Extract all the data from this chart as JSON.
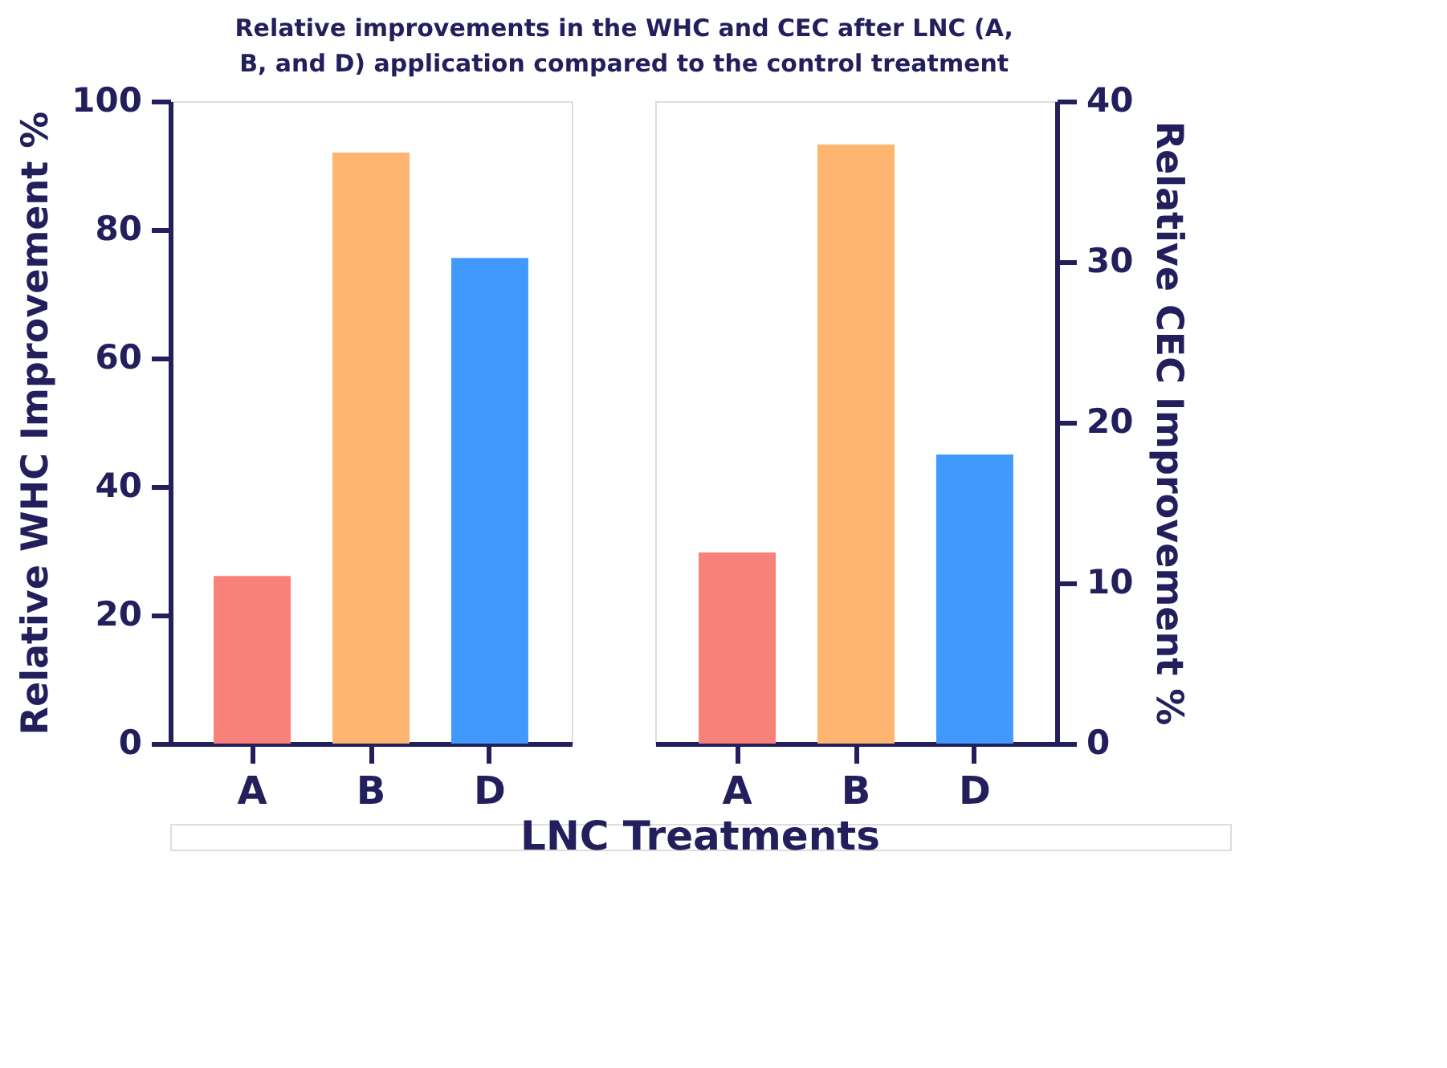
{
  "chart_data": [
    {
      "type": "bar",
      "title": "Relative improvements in the WHC and CEC after LNC (A, B, and D) application compared to the control treatment",
      "xlabel": "LNC Treatments",
      "ylabel": "Relative WHC Improvement %",
      "categories": [
        "A",
        "B",
        "D"
      ],
      "values": [
        26.1,
        92.0,
        75.6
      ],
      "colors": [
        "#f8817a",
        "#fdb56f",
        "#4199fe"
      ],
      "ylim": [
        0,
        100
      ],
      "yticks": [
        0,
        20,
        40,
        60,
        80,
        100
      ],
      "grid": false
    },
    {
      "type": "bar",
      "y2label": "Relative CEC Improvement %",
      "categories": [
        "A",
        "B",
        "D"
      ],
      "colors": [
        "#f8817a",
        "#fdb56f",
        "#4199fe"
      ],
      "series": [
        {
          "axis": "y2",
          "values": [
            11.9,
            37.3,
            18.0
          ]
        }
      ],
      "y2lim": [
        0,
        40
      ],
      "y2ticks": [
        0,
        10,
        20,
        30,
        40
      ],
      "grid": false
    }
  ]
}
